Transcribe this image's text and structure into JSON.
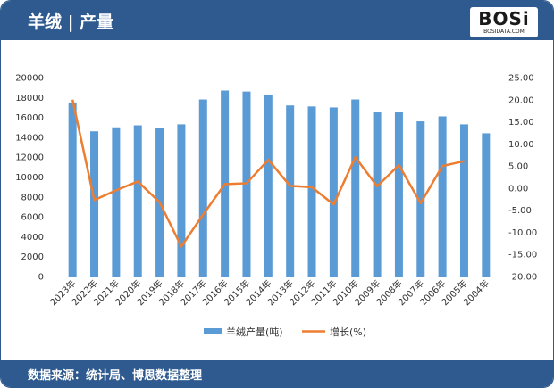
{
  "header": {
    "title": "羊绒 | 产量"
  },
  "logo": {
    "text": "BOSi",
    "sub": "BOSIDATA.COM"
  },
  "footer": {
    "source": "数据来源：统计局、博思数据整理"
  },
  "colors": {
    "bar": "#5b9bd5",
    "line": "#ed7d31",
    "header": "#2e5a8f"
  },
  "chart_data": {
    "type": "bar",
    "categories": [
      "2023年",
      "2022年",
      "2021年",
      "2020年",
      "2019年",
      "2018年",
      "2017年",
      "2016年",
      "2015年",
      "2014年",
      "2013年",
      "2012年",
      "2011年",
      "2010年",
      "2009年",
      "2008年",
      "2007年",
      "2006年",
      "2005年",
      "2004年"
    ],
    "series": [
      {
        "name": "羊绒产量(吨)",
        "type": "bar",
        "axis": "left",
        "values": [
          17500,
          14600,
          15000,
          15200,
          14900,
          15300,
          17800,
          18700,
          18600,
          18300,
          17200,
          17100,
          17000,
          17800,
          16500,
          16500,
          15600,
          16100,
          15300,
          14400
        ]
      },
      {
        "name": "增长(%)",
        "type": "line",
        "axis": "right",
        "values": [
          20.0,
          -2.7,
          -0.5,
          1.5,
          -3.2,
          -13.2,
          -6.0,
          0.9,
          1.1,
          6.4,
          0.5,
          0.2,
          -3.7,
          7.0,
          0.4,
          5.2,
          -3.4,
          5.0,
          6.1,
          null
        ]
      }
    ],
    "y_left": {
      "ylim": [
        0,
        20000
      ],
      "ticks": [
        0,
        2000,
        4000,
        6000,
        8000,
        10000,
        12000,
        14000,
        16000,
        18000,
        20000
      ]
    },
    "y_right": {
      "ylim": [
        -20,
        25
      ],
      "ticks": [
        "-20.00",
        "-15.00",
        "-10.00",
        "-5.00",
        "0.00",
        "5.00",
        "10.00",
        "15.00",
        "20.00",
        "25.00"
      ]
    },
    "grid": false,
    "legend": "bottom"
  }
}
